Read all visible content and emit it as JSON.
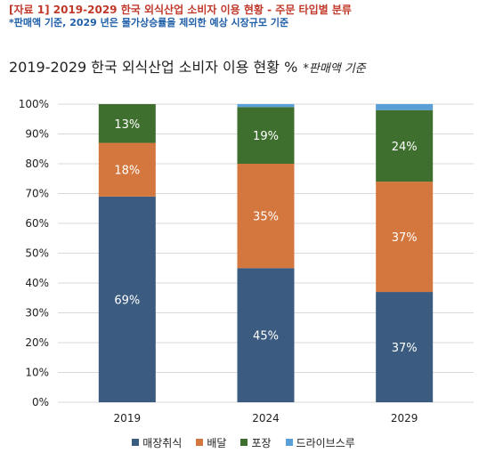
{
  "caption": "[자료 1] 2019-2029 한국 외식산업 소비자 이용 현황 - 주문 타입별 분류",
  "note": "*판매액 기준, 2029 년은 물가상승률을 제외한 예상 시장규모 기준",
  "chart_data": {
    "type": "bar",
    "stacked": true,
    "title": "2019-2029 한국 외식산업 소비자 이용 현황",
    "title_unit": "%",
    "title_note": "*판매액 기준",
    "categories": [
      "2019",
      "2024",
      "2029"
    ],
    "series": [
      {
        "name": "매장취식",
        "color": "#3b5c80",
        "values": [
          69,
          45,
          37
        ],
        "labels": [
          "69%",
          "45%",
          "37%"
        ]
      },
      {
        "name": "배달",
        "color": "#d4773e",
        "values": [
          18,
          35,
          37
        ],
        "labels": [
          "18%",
          "35%",
          "37%"
        ]
      },
      {
        "name": "포장",
        "color": "#3f6f2e",
        "values": [
          13,
          19,
          24
        ],
        "labels": [
          "13%",
          "19%",
          "24%"
        ]
      },
      {
        "name": "드라이브스루",
        "color": "#5a9fd8",
        "values": [
          0,
          1,
          2
        ],
        "labels": [
          "",
          "",
          ""
        ]
      }
    ],
    "ylim": [
      0,
      100
    ],
    "yticks": [
      "0%",
      "10%",
      "20%",
      "30%",
      "40%",
      "50%",
      "60%",
      "70%",
      "80%",
      "90%",
      "100%"
    ],
    "legend_position": "bottom"
  }
}
